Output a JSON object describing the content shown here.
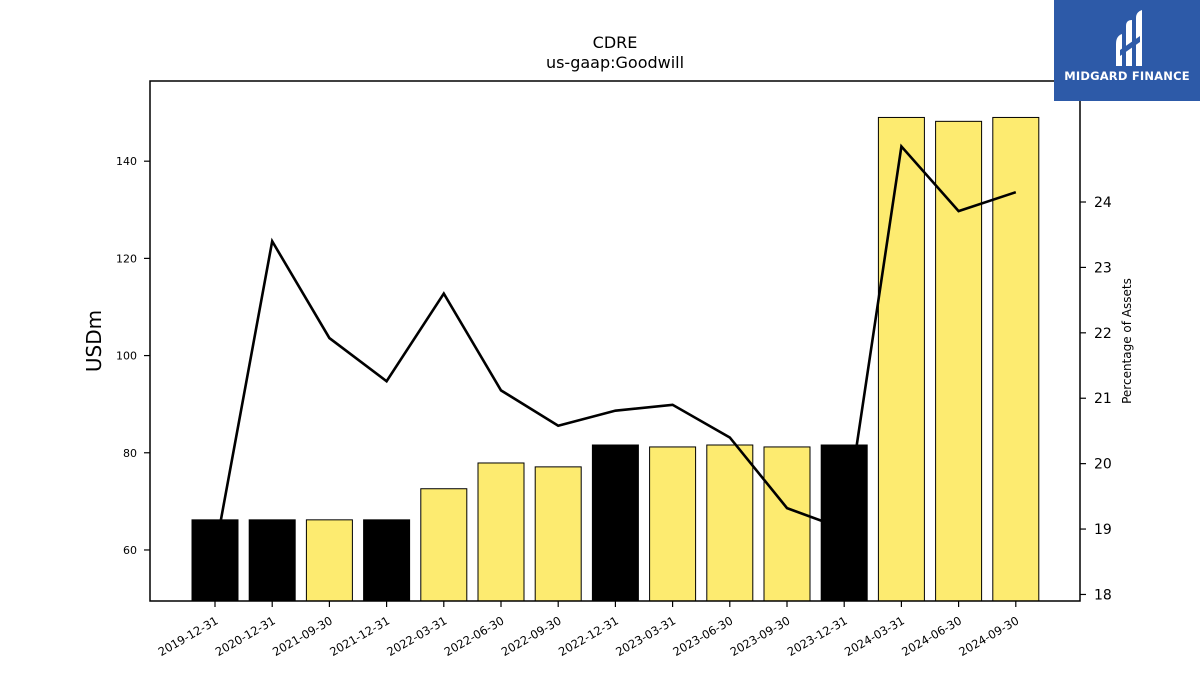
{
  "chart_data": {
    "type": "bar",
    "title": "CDRE",
    "subtitle": "us-gaap:Goodwill",
    "ylabel": "USDm",
    "y2label": "Percentage of Assets",
    "categories": [
      "2019-12-31",
      "2020-12-31",
      "2021-09-30",
      "2021-12-31",
      "2022-03-31",
      "2022-06-30",
      "2022-09-30",
      "2022-12-31",
      "2023-03-31",
      "2023-06-30",
      "2023-09-30",
      "2023-12-31",
      "2024-03-31",
      "2024-06-30",
      "2024-09-30"
    ],
    "values": [
      66.2,
      66.2,
      66.2,
      66.2,
      72.6,
      77.9,
      77.1,
      81.6,
      81.2,
      81.6,
      81.2,
      81.6,
      149.0,
      148.2,
      149.0
    ],
    "bar_colors": [
      "#000000",
      "#000000",
      "#fdeb70",
      "#000000",
      "#fdeb70",
      "#fdeb70",
      "#fdeb70",
      "#000000",
      "#fdeb70",
      "#fdeb70",
      "#fdeb70",
      "#000000",
      "#fdeb70",
      "#fdeb70",
      "#fdeb70"
    ],
    "line_values": [
      18.65,
      23.4,
      21.92,
      21.26,
      22.6,
      21.12,
      20.58,
      20.81,
      20.9,
      20.4,
      19.32,
      19.0,
      24.85,
      23.86,
      24.15
    ],
    "ylim": [
      49.5,
      156.5
    ],
    "y2lim": [
      17.9,
      25.85
    ],
    "yticks": [
      60,
      80,
      100,
      120,
      140
    ],
    "y2ticks": [
      18,
      19,
      20,
      21,
      22,
      23,
      24
    ],
    "grid": false,
    "line_color": "#000000"
  },
  "logo": {
    "text": "MIDGARD FINANCE",
    "bg_color": "#2d5aa8"
  }
}
